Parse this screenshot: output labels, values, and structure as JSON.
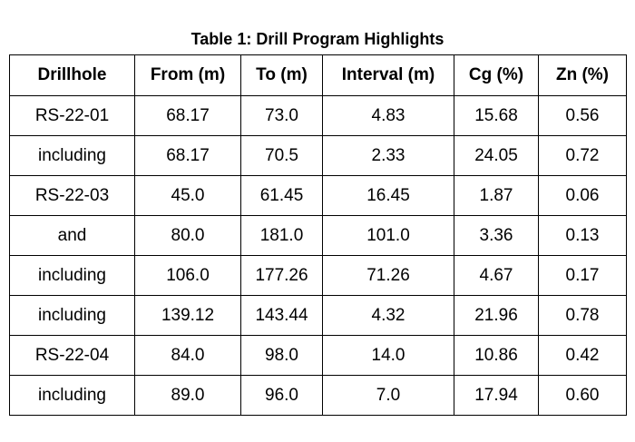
{
  "title": "Table 1:  Drill Program Highlights",
  "headers": [
    "Drillhole",
    "From (m)",
    "To (m)",
    "Interval (m)",
    "Cg (%)",
    "Zn (%)"
  ],
  "rows": [
    [
      "RS-22-01",
      "68.17",
      "73.0",
      "4.83",
      "15.68",
      "0.56"
    ],
    [
      "including",
      "68.17",
      "70.5",
      "2.33",
      "24.05",
      "0.72"
    ],
    [
      "RS-22-03",
      "45.0",
      "61.45",
      "16.45",
      "1.87",
      "0.06"
    ],
    [
      "and",
      "80.0",
      "181.0",
      "101.0",
      "3.36",
      "0.13"
    ],
    [
      "including",
      "106.0",
      "177.26",
      "71.26",
      "4.67",
      "0.17"
    ],
    [
      "including",
      "139.12",
      "143.44",
      "4.32",
      "21.96",
      "0.78"
    ],
    [
      "RS-22-04",
      "84.0",
      "98.0",
      "14.0",
      "10.86",
      "0.42"
    ],
    [
      "including",
      "89.0",
      "96.0",
      "7.0",
      "17.94",
      "0.60"
    ]
  ]
}
